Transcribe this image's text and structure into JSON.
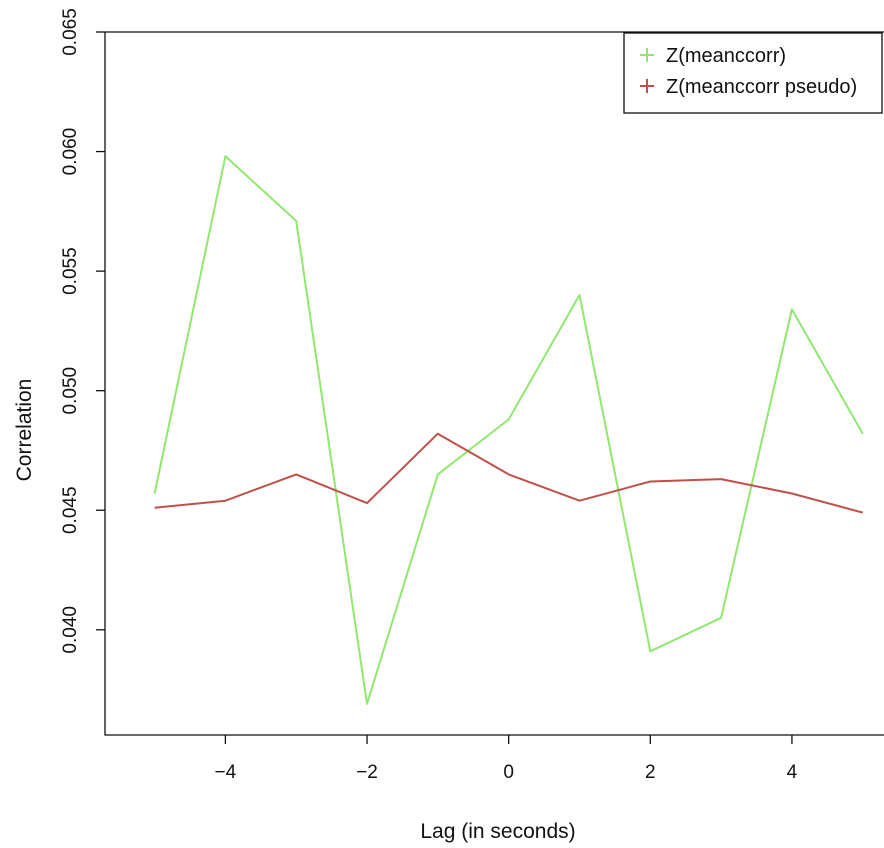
{
  "chart_data": {
    "type": "line",
    "title": "",
    "xlabel": "Lag (in seconds)",
    "ylabel": "Correlation",
    "x": [
      -5,
      -4,
      -3,
      -2,
      -1,
      0,
      1,
      2,
      3,
      4,
      5
    ],
    "xlim": [
      -5.7,
      5.3
    ],
    "ylim": [
      0.0356,
      0.065
    ],
    "xticks": [
      -4,
      -2,
      0,
      2,
      4
    ],
    "xtick_labels": [
      "−4",
      "−2",
      "0",
      "2",
      "4"
    ],
    "yticks": [
      0.04,
      0.045,
      0.05,
      0.055,
      0.06,
      0.065
    ],
    "ytick_labels": [
      "0.040",
      "0.045",
      "0.050",
      "0.055",
      "0.060",
      "0.065"
    ],
    "grid": false,
    "legend_position": "top-right",
    "series": [
      {
        "name": "Z(meanccorr)",
        "color": "#90e870",
        "values": [
          0.0457,
          0.0598,
          0.0571,
          0.0369,
          0.0465,
          0.0488,
          0.054,
          0.0391,
          0.0405,
          0.0534,
          0.0482
        ]
      },
      {
        "name": "Z(meanccorr pseudo)",
        "color": "#c0504a",
        "values": [
          0.0451,
          0.0454,
          0.0465,
          0.0453,
          0.0482,
          0.0465,
          0.0454,
          0.0462,
          0.0463,
          0.0457,
          0.0449
        ]
      }
    ]
  }
}
